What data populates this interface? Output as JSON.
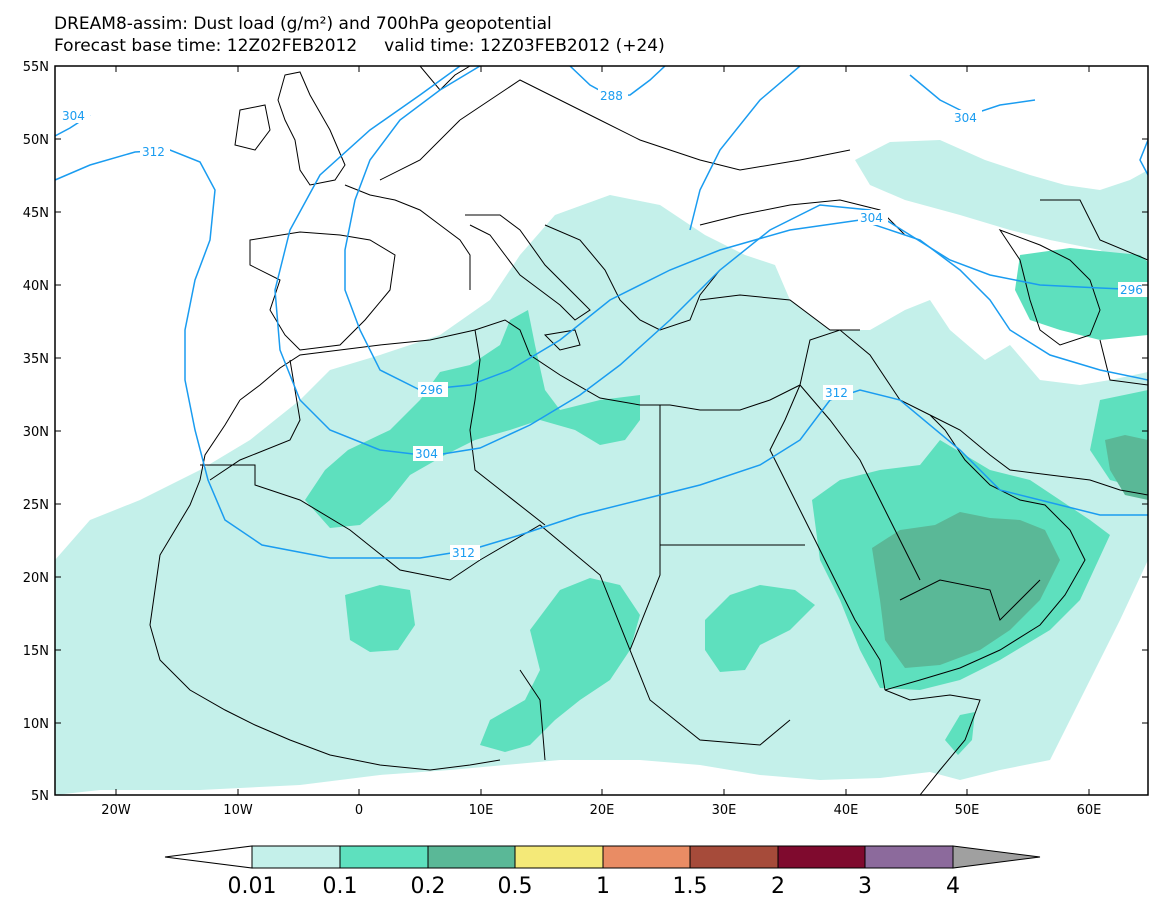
{
  "title_line1": "DREAM8-assim: Dust load (g/m²) and 700hPa geopotential",
  "title_line2": "Forecast base time: 12Z02FEB2012     valid time: 12Z03FEB2012 (+24)",
  "lat_labels": [
    "55N",
    "50N",
    "45N",
    "40N",
    "35N",
    "30N",
    "25N",
    "20N",
    "15N",
    "10N",
    "5N"
  ],
  "lon_labels": [
    "20W",
    "10W",
    "0",
    "10E",
    "20E",
    "30E",
    "40E",
    "50E",
    "60E"
  ],
  "contour_labels": [
    "304",
    "312",
    "288",
    "304",
    "304",
    "296",
    "296",
    "304",
    "312",
    "312"
  ],
  "colorbar": {
    "labels": [
      "0.01",
      "0.1",
      "0.2",
      "0.5",
      "1",
      "1.5",
      "2",
      "3",
      "4"
    ],
    "colors": [
      "#c4f0ea",
      "#5ee0be",
      "#5ab897",
      "#f4e978",
      "#e98c64",
      "#a64b3a",
      "#7f0a2e",
      "#8c6a9c"
    ],
    "under_color": "#ffffff",
    "over_color": "#a0a0a0"
  },
  "dust_colors": {
    "low": "#c4f0ea",
    "mid": "#5ee0be",
    "high": "#5ab897"
  },
  "contour_color": "#1a9cf0"
}
